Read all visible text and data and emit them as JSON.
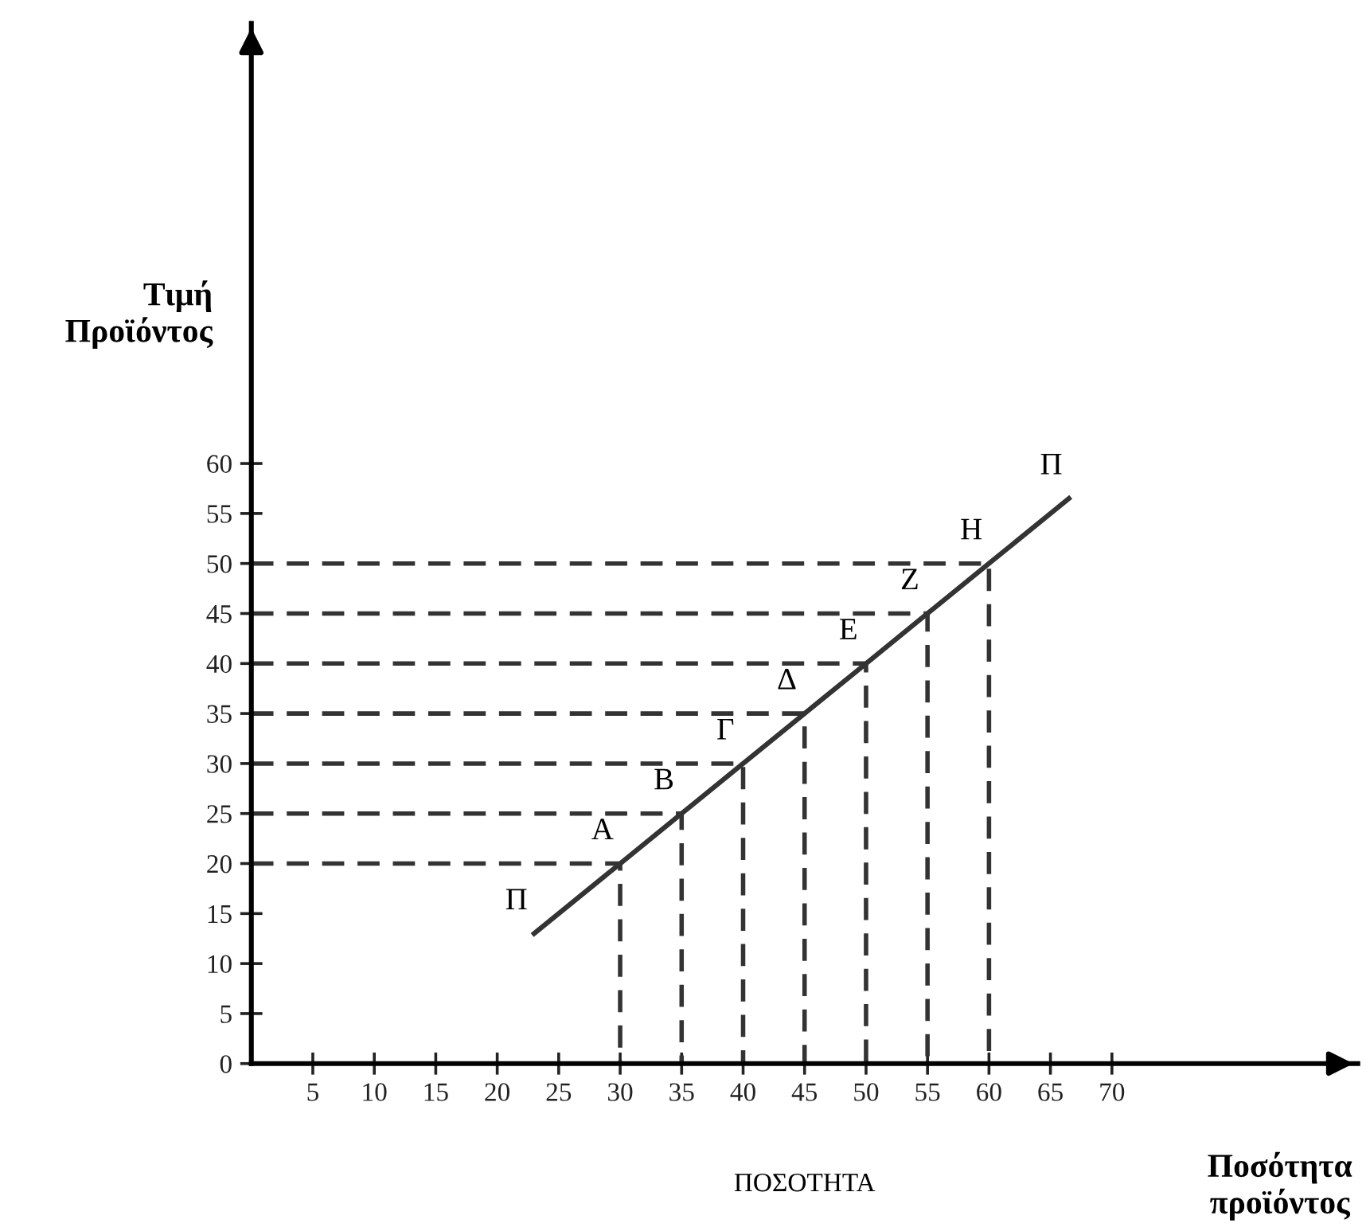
{
  "chart_data": {
    "type": "line",
    "xlabel": "ΠΟΣΟΤΗΤΑ",
    "ylabel": "Τιμή\nΠροϊόντος",
    "xlim": [
      0,
      90
    ],
    "ylim": [
      0,
      104
    ],
    "xticks": [
      5,
      10,
      15,
      20,
      25,
      30,
      35,
      40,
      45,
      50,
      55,
      60,
      65,
      70
    ],
    "yticks": [
      0,
      5,
      10,
      15,
      20,
      25,
      30,
      35,
      40,
      45,
      50,
      55,
      60
    ],
    "grid": false,
    "legend": false,
    "marker": "none",
    "series": [
      {
        "color": "#333333",
        "line_style": "solid",
        "x": [
          23,
          30,
          35,
          40,
          45,
          50,
          55,
          60,
          66.5
        ],
        "values": [
          13,
          20,
          25,
          30,
          35,
          40,
          45,
          50,
          56.5
        ]
      },
      {
        "type": "line",
        "color": "#333333",
        "line_style": "dashed",
        "x": [
          0,
          30,
          30
        ],
        "values": [
          20,
          20,
          0
        ]
      },
      {
        "type": "line",
        "color": "#333333",
        "line_style": "dashed",
        "x": [
          0,
          35,
          35
        ],
        "values": [
          25,
          25,
          0
        ]
      },
      {
        "type": "line",
        "color": "#333333",
        "line_style": "dashed",
        "x": [
          0,
          40,
          40
        ],
        "values": [
          30,
          30,
          0
        ]
      },
      {
        "type": "line",
        "color": "#333333",
        "line_style": "dashed",
        "x": [
          0,
          45,
          45
        ],
        "values": [
          35,
          35,
          0
        ]
      },
      {
        "type": "line",
        "color": "#333333",
        "line_style": "dashed",
        "x": [
          0,
          50,
          50
        ],
        "values": [
          40,
          40,
          0
        ]
      },
      {
        "type": "line",
        "color": "#333333",
        "line_style": "dashed",
        "x": [
          0,
          55,
          55
        ],
        "values": [
          45,
          45,
          0
        ]
      },
      {
        "type": "line",
        "color": "#333333",
        "line_style": "dashed",
        "x": [
          0,
          60,
          60
        ],
        "values": [
          50,
          50,
          0
        ]
      }
    ],
    "annotations": [
      {
        "text": "Α",
        "x": 30,
        "y": 20
      },
      {
        "text": "Β",
        "x": 35,
        "y": 25
      },
      {
        "text": "Γ",
        "x": 40,
        "y": 30
      },
      {
        "text": "Δ",
        "x": 45,
        "y": 35
      },
      {
        "text": "Ε",
        "x": 50,
        "y": 40
      },
      {
        "text": "Ζ",
        "x": 55,
        "y": 45
      },
      {
        "text": "Η",
        "x": 60,
        "y": 50
      },
      {
        "text": "Π",
        "x": 23,
        "y": 13
      },
      {
        "text": "Π",
        "x": 66.5,
        "y": 56.5
      },
      "Ποσότητα\nπροϊόντος"
    ]
  }
}
